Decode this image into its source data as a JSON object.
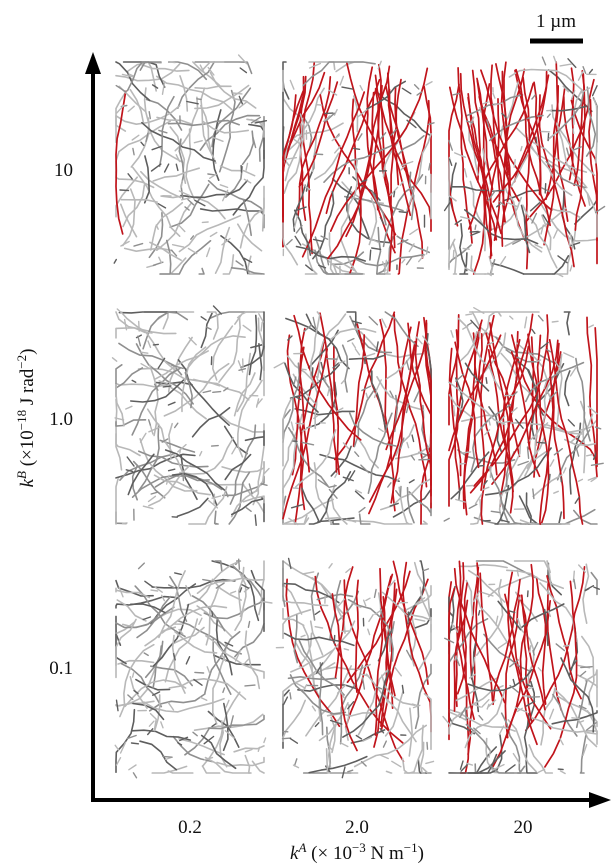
{
  "scale_bar": {
    "label": "1 µm"
  },
  "x_axis": {
    "title_symbol": "k",
    "title_superscript": "A",
    "title_unit_pre": " (× 10",
    "title_unit_exp": "−3",
    "title_unit_post": " N m",
    "title_unit_exp2": "−1",
    "title_unit_end": ")",
    "ticks": [
      "0.2",
      "2.0",
      "20"
    ]
  },
  "y_axis": {
    "title_symbol": "k",
    "title_superscript": "B",
    "title_unit_pre": " (×10",
    "title_unit_exp": "−18",
    "title_unit_post": " J rad",
    "title_unit_exp2": "−2",
    "title_unit_end": ")",
    "ticks": [
      "10",
      "1.0",
      "0.1"
    ]
  },
  "panels": [
    {
      "kB": "10",
      "kA": "0.2",
      "red_fraction": 0.02
    },
    {
      "kB": "10",
      "kA": "2.0",
      "red_fraction": 0.3
    },
    {
      "kB": "10",
      "kA": "20",
      "red_fraction": 0.42
    },
    {
      "kB": "1.0",
      "kA": "0.2",
      "red_fraction": 0.0
    },
    {
      "kB": "1.0",
      "kA": "2.0",
      "red_fraction": 0.28
    },
    {
      "kB": "1.0",
      "kA": "20",
      "red_fraction": 0.33
    },
    {
      "kB": "0.1",
      "kA": "0.2",
      "red_fraction": 0.0
    },
    {
      "kB": "0.1",
      "kA": "2.0",
      "red_fraction": 0.18
    },
    {
      "kB": "0.1",
      "kA": "20",
      "red_fraction": 0.24
    }
  ],
  "colors": {
    "axis": "#000000",
    "fiber_gray_light": "#b8b8b8",
    "fiber_gray_mid": "#8f8f8f",
    "fiber_gray_dark": "#5e5e5e",
    "fiber_red": "#c0141b"
  }
}
